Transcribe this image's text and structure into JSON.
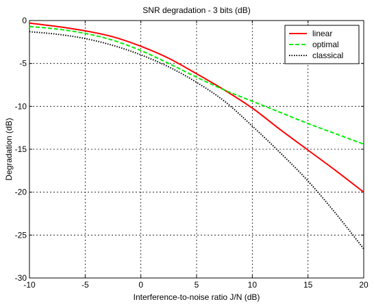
{
  "chart_data": {
    "type": "line",
    "title": "SNR degradation - 3 bits (dB)",
    "xlabel": "Interference-to-noise ratio J/N (dB)",
    "ylabel": "Degradation (dB)",
    "xlim": [
      -10,
      20
    ],
    "ylim": [
      -30,
      0
    ],
    "xticks": [
      -10,
      -5,
      0,
      5,
      10,
      15,
      20
    ],
    "yticks": [
      0,
      -5,
      -10,
      -15,
      -20,
      -25,
      -30
    ],
    "grid": true,
    "legend_position": "top-right",
    "series": [
      {
        "name": "linear",
        "color": "#ff0000",
        "dash": "solid",
        "x": [
          -10,
          -7.5,
          -5,
          -2.5,
          0,
          2.5,
          5,
          7.5,
          10,
          12.5,
          15,
          17.5,
          20
        ],
        "y": [
          -0.3,
          -0.7,
          -1.2,
          -1.9,
          -3.0,
          -4.4,
          -6.2,
          -8.1,
          -10.2,
          -12.7,
          -15.1,
          -17.5,
          -20.0
        ]
      },
      {
        "name": "optimal",
        "color": "#00ee00",
        "dash": "dashed",
        "x": [
          -10,
          -7.5,
          -5,
          -2.5,
          0,
          2.5,
          5,
          7.5,
          10,
          12.5,
          15,
          17.5,
          20
        ],
        "y": [
          -0.7,
          -1.0,
          -1.5,
          -2.3,
          -3.5,
          -5.0,
          -6.6,
          -8.1,
          -9.4,
          -10.7,
          -12.0,
          -13.2,
          -14.4
        ]
      },
      {
        "name": "classical",
        "color": "#000000",
        "dash": "dotted",
        "x": [
          -10,
          -7.5,
          -5,
          -2.5,
          0,
          2.5,
          5,
          7.5,
          10,
          12.5,
          15,
          17.5,
          20
        ],
        "y": [
          -1.3,
          -1.6,
          -2.1,
          -2.9,
          -4.0,
          -5.4,
          -7.2,
          -9.4,
          -12.3,
          -15.4,
          -18.7,
          -22.5,
          -26.6
        ]
      }
    ]
  }
}
